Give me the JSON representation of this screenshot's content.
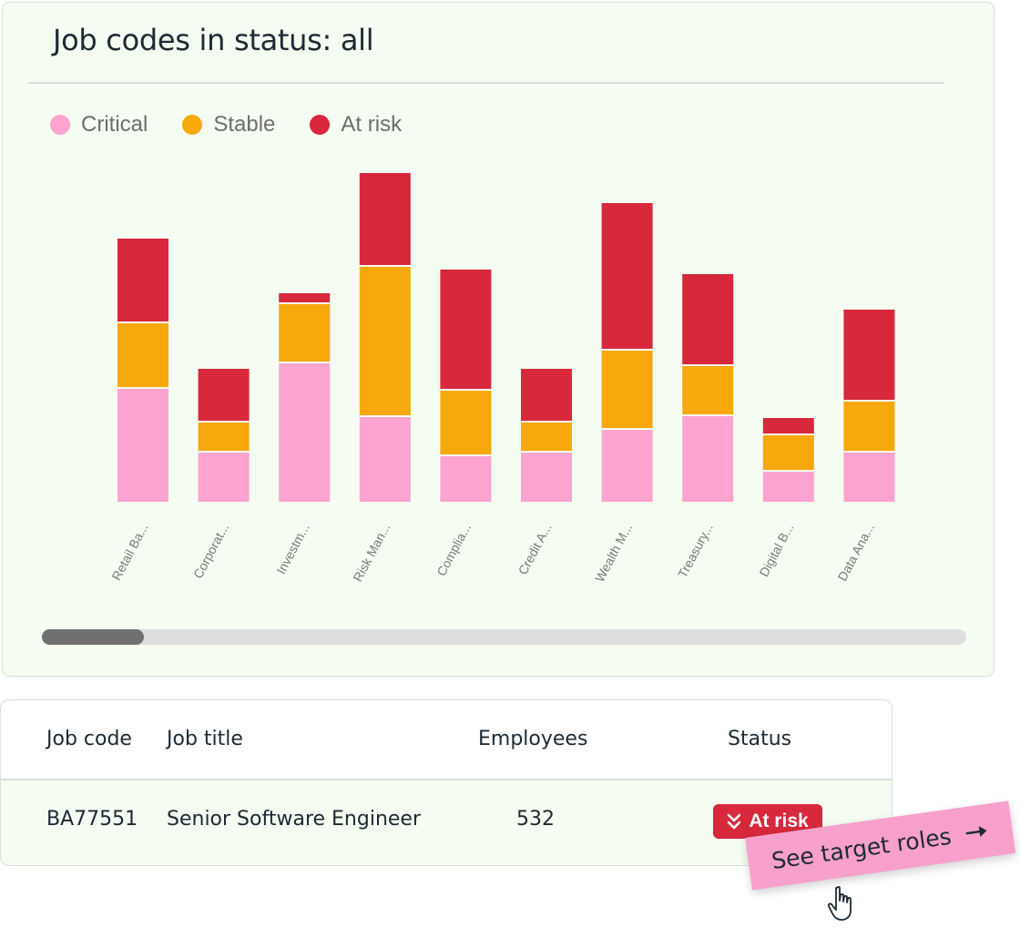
{
  "card": {
    "title": "Job codes in status: all"
  },
  "colors": {
    "critical": "#fca3cf",
    "stable": "#f6a80d",
    "at_risk": "#d7283c",
    "bg": "#f5fcf2"
  },
  "chart_data": {
    "type": "bar",
    "stacked": true,
    "title": "Job codes in status: all",
    "legend": [
      "Critical",
      "Stable",
      "At risk"
    ],
    "legend_position": "top-left",
    "categories": [
      "Retail Ba...",
      "Corporat...",
      "Investm...",
      "Risk Man...",
      "Complia...",
      "Credit A...",
      "Wealth M...",
      "Treasury...",
      "Digital B...",
      "Data Ana..."
    ],
    "series": [
      {
        "name": "Critical",
        "values": [
          126,
          56,
          154,
          95,
          52,
          56,
          81,
          96,
          35,
          56
        ]
      },
      {
        "name": "Stable",
        "values": [
          72,
          33,
          65,
          165,
          72,
          33,
          87,
          55,
          40,
          56
        ]
      },
      {
        "name": "At risk",
        "values": [
          93,
          59,
          12,
          103,
          133,
          59,
          162,
          101,
          19,
          101
        ]
      }
    ],
    "ylim": [
      0,
      370
    ],
    "grid": false
  },
  "table": {
    "headers": {
      "code": "Job code",
      "title": "Job title",
      "employees": "Employees",
      "status": "Status"
    },
    "row": {
      "code": "BA77551",
      "title": "Senior Software Engineer",
      "employees": "532",
      "status": "At risk"
    }
  },
  "cta": {
    "label": "See target roles"
  },
  "icons": {
    "badge": "double-chevron-down-icon",
    "cta": "arrow-right-icon",
    "cursor": "hand-pointer-icon"
  }
}
